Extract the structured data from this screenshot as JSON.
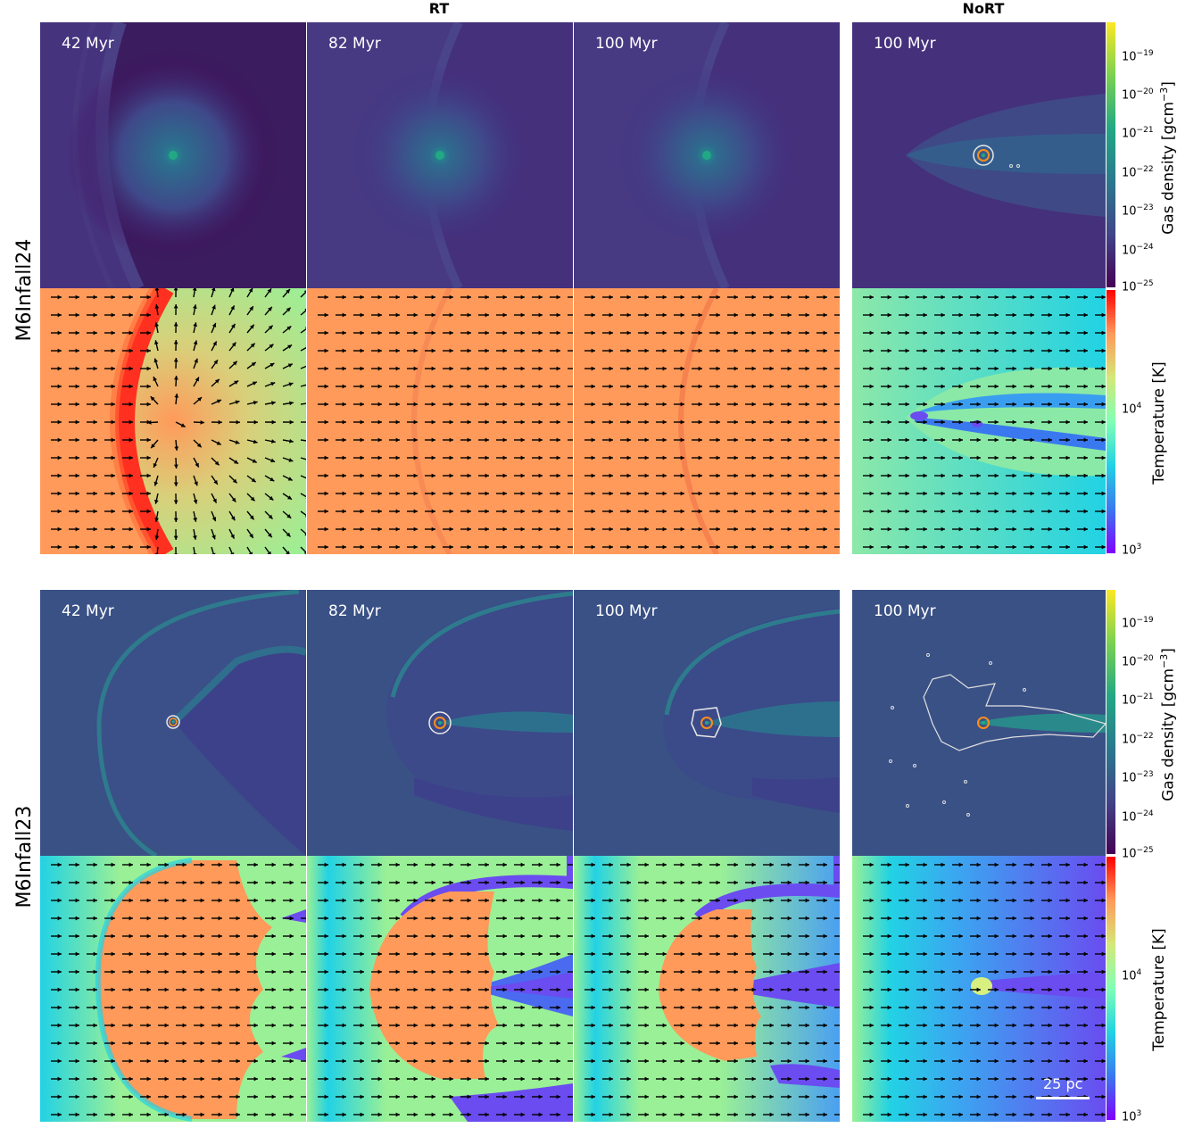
{
  "headers": {
    "rt": "RT",
    "nort": "NoRT"
  },
  "rows": [
    {
      "label": "M6Infall24",
      "times": [
        "42 Myr",
        "82 Myr",
        "100 Myr",
        "100 Myr"
      ]
    },
    {
      "label": "M6Infall23",
      "times": [
        "42 Myr",
        "82 Myr",
        "100 Myr",
        "100 Myr"
      ]
    }
  ],
  "density_colorbar": {
    "label": "Gas density [gcm$^{-3}$]",
    "label_text": "Gas density [gcm",
    "label_sup": "−3",
    "label_end": "]",
    "ticks": [
      {
        "base": "10",
        "exp": "−19"
      },
      {
        "base": "10",
        "exp": "−20"
      },
      {
        "base": "10",
        "exp": "−21"
      },
      {
        "base": "10",
        "exp": "−22"
      },
      {
        "base": "10",
        "exp": "−23"
      },
      {
        "base": "10",
        "exp": "−24"
      },
      {
        "base": "10",
        "exp": "−25"
      }
    ],
    "colormap": "viridis"
  },
  "temperature_colorbar": {
    "label": "Temperature [K]",
    "ticks": [
      {
        "base": "10",
        "exp": "4"
      },
      {
        "base": "10",
        "exp": "3"
      }
    ],
    "colormap": "rainbow"
  },
  "scalebar": {
    "label": "25 pc"
  },
  "colors": {
    "bg_density_24": "#3f2a6b",
    "bg_density_23": "#3a5186",
    "temp_orange": "#ff9a5a",
    "temp_red": "#ff3020",
    "temp_green": "#9af096",
    "temp_cyan": "#22d2e4",
    "temp_blue": "#6a4cf0"
  }
}
